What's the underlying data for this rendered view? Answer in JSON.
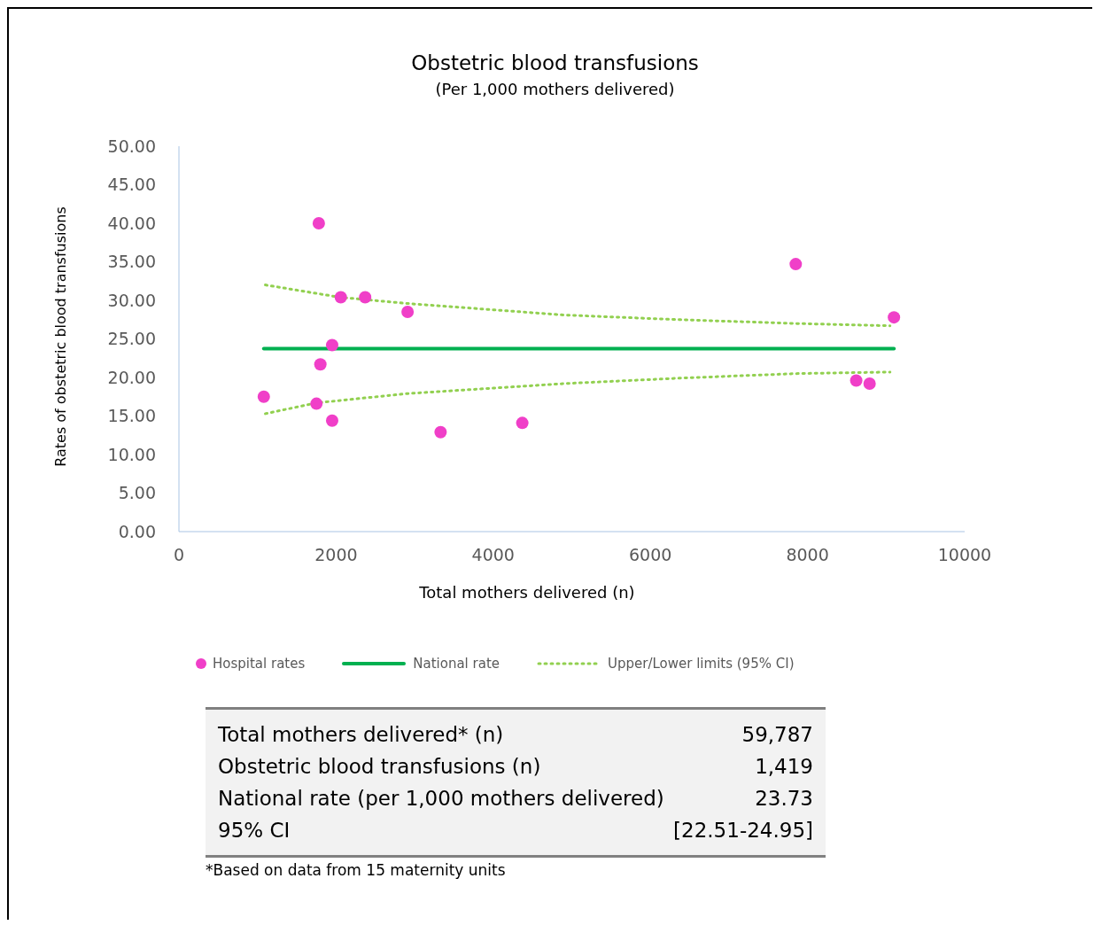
{
  "chart_data": {
    "type": "scatter",
    "title": "Obstetric blood transfusions",
    "subtitle": "(Per 1,000 mothers delivered)",
    "xlabel": "Total mothers delivered (n)",
    "ylabel": "Rates of obstetric blood transfusions",
    "series": [
      {
        "name": "Hospital rates",
        "type": "scatter",
        "color": "#f03fc8",
        "marker": "circle",
        "x": [
          1080,
          1780,
          2060,
          2370,
          2910,
          1950,
          1800,
          1750,
          1950,
          3330,
          4370,
          7850,
          9100,
          8620,
          8790
        ],
        "values": [
          17.5,
          40.0,
          30.4,
          30.4,
          28.5,
          24.2,
          21.7,
          16.6,
          14.4,
          12.9,
          14.1,
          34.7,
          27.8,
          19.6,
          19.2
        ]
      },
      {
        "name": "National rate",
        "type": "line",
        "color": "#00b050",
        "line_style": "solid",
        "x": [
          1080,
          9100
        ],
        "values": [
          23.73,
          23.73
        ]
      },
      {
        "name": "Upper/Lower limits (95% CI)",
        "type": "line",
        "color": "#92d050",
        "line_style": "dotted",
        "x": [
          1100,
          2050,
          2900,
          4900,
          6350,
          7850,
          9050
        ],
        "values": [
          32.0,
          30.4,
          29.6,
          28.1,
          27.5,
          27.0,
          26.7
        ]
      },
      {
        "type": "line",
        "color": "#92d050",
        "line_style": "dotted",
        "x": [
          1100,
          1750,
          2900,
          4900,
          6350,
          7850,
          9050
        ],
        "values": [
          15.3,
          16.7,
          17.9,
          19.2,
          19.9,
          20.5,
          20.7
        ]
      }
    ],
    "xlim": [
      0,
      10000
    ],
    "xticks": [
      0,
      2000,
      4000,
      6000,
      8000,
      10000
    ],
    "ylim": [
      0,
      50
    ],
    "yticks": [
      {
        "value": 0,
        "label": "0.00"
      },
      {
        "value": 5,
        "label": "5.00"
      },
      {
        "value": 10,
        "label": "10.00"
      },
      {
        "value": 15,
        "label": "15.00"
      },
      {
        "value": 20,
        "label": "20.00"
      },
      {
        "value": 25,
        "label": "25.00"
      },
      {
        "value": 30,
        "label": "30.00"
      },
      {
        "value": 35,
        "label": "35.00"
      },
      {
        "value": 40,
        "label": "40.00"
      },
      {
        "value": 45,
        "label": "45.00"
      },
      {
        "value": 50,
        "label": "50.00"
      }
    ],
    "grid": false,
    "legend": "bottom",
    "annotations": [
      "Total mothers delivered* (n)",
      "59,787",
      "Obstetric blood transfusions (n)",
      "1,419",
      "National rate (per 1,000 mothers delivered)",
      "23.73",
      "95% CI",
      "[22.51-24.95]",
      "*Based on data from 15 maternity units"
    ]
  }
}
